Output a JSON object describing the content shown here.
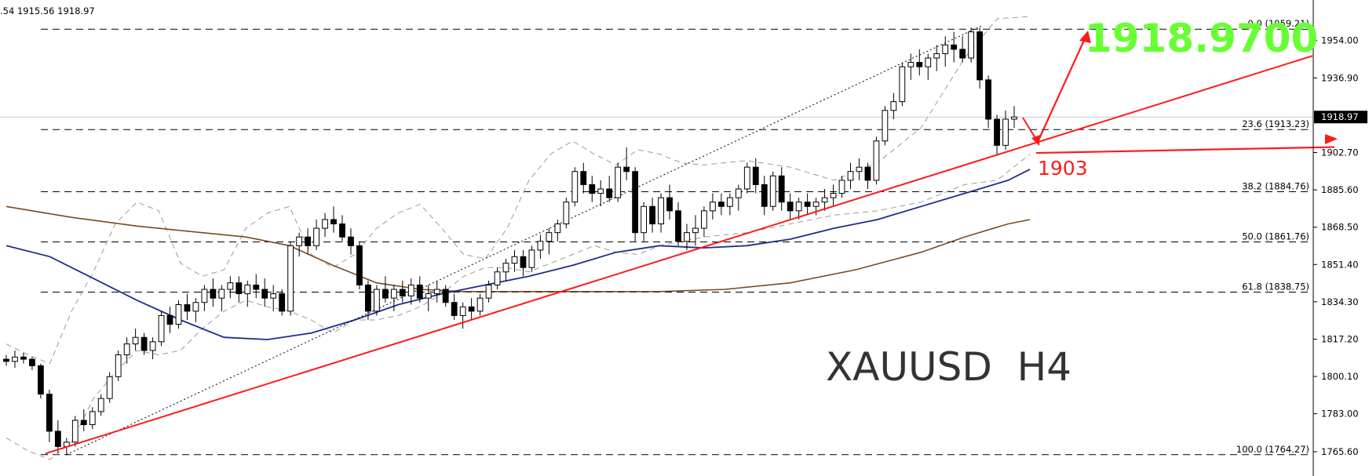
{
  "chart_header": {
    "ohlc_text": ".54 1915.56 1918.97"
  },
  "symbol_label": "XAUUSD  H4",
  "big_price_label": "1918.9700",
  "support_label": "1903",
  "current_price_label": "1918.97",
  "colors": {
    "background": "#ffffff",
    "candle_body_bull": "#ffffff",
    "candle_body_bear": "#000000",
    "ma_blue": "#1f2d8c",
    "ma_brown": "#7a4a1f",
    "trendline_red": "#ff1a1a",
    "big_price_green": "#66ff33",
    "bands_gray": "#9a9a9a",
    "fib_dash": "#000000"
  },
  "chart_data": {
    "type": "candlestick",
    "title": "",
    "symbol": "XAUUSD",
    "timeframe": "H4",
    "ylim": [
      1757,
      1969
    ],
    "y_ticks": [
      {
        "value": 1954.0,
        "label": "1954.00"
      },
      {
        "value": 1936.9,
        "label": "1936.90"
      },
      {
        "value": 1918.97,
        "label": "1918.97"
      },
      {
        "value": 1902.7,
        "label": "1902.70"
      },
      {
        "value": 1885.6,
        "label": "1885.60"
      },
      {
        "value": 1868.5,
        "label": "1868.50"
      },
      {
        "value": 1851.4,
        "label": "1851.40"
      },
      {
        "value": 1834.3,
        "label": "1834.30"
      },
      {
        "value": 1817.2,
        "label": "1817.20"
      },
      {
        "value": 1800.1,
        "label": "1800.10"
      },
      {
        "value": 1783.0,
        "label": "1783.00"
      },
      {
        "value": 1765.6,
        "label": "1765.60"
      }
    ],
    "fib_levels": [
      {
        "label": "0.0 (1959.21)",
        "value": 1959.21
      },
      {
        "label": "23.6 (1913.23)",
        "value": 1913.23
      },
      {
        "label": "38.2 (1884.76)",
        "value": 1884.76
      },
      {
        "label": "50.0 (1861.76)",
        "value": 1861.76
      },
      {
        "label": "61.8 (1838.75)",
        "value": 1838.75
      },
      {
        "label": "100.0 (1764.27)",
        "value": 1764.27
      }
    ],
    "current_price": 1918.97,
    "annotations": [
      {
        "text": "1918.9700",
        "kind": "target"
      },
      {
        "text": "1903",
        "kind": "support"
      }
    ],
    "candles": [
      [
        1808,
        1810,
        1805,
        1807
      ],
      [
        1807,
        1812,
        1804,
        1809
      ],
      [
        1809,
        1811,
        1806,
        1808
      ],
      [
        1808,
        1809,
        1803,
        1805
      ],
      [
        1805,
        1806,
        1790,
        1792
      ],
      [
        1792,
        1794,
        1770,
        1775
      ],
      [
        1775,
        1780,
        1765,
        1768
      ],
      [
        1768,
        1772,
        1764,
        1770
      ],
      [
        1770,
        1782,
        1768,
        1780
      ],
      [
        1780,
        1785,
        1775,
        1778
      ],
      [
        1778,
        1786,
        1776,
        1784
      ],
      [
        1784,
        1792,
        1782,
        1790
      ],
      [
        1790,
        1802,
        1788,
        1800
      ],
      [
        1800,
        1812,
        1798,
        1810
      ],
      [
        1810,
        1818,
        1806,
        1815
      ],
      [
        1815,
        1822,
        1812,
        1818
      ],
      [
        1818,
        1820,
        1810,
        1812
      ],
      [
        1812,
        1818,
        1808,
        1816
      ],
      [
        1816,
        1830,
        1814,
        1828
      ],
      [
        1828,
        1832,
        1820,
        1824
      ],
      [
        1824,
        1835,
        1822,
        1833
      ],
      [
        1833,
        1838,
        1826,
        1830
      ],
      [
        1830,
        1836,
        1825,
        1834
      ],
      [
        1834,
        1842,
        1830,
        1840
      ],
      [
        1840,
        1845,
        1832,
        1836
      ],
      [
        1836,
        1842,
        1830,
        1840
      ],
      [
        1840,
        1846,
        1836,
        1843
      ],
      [
        1843,
        1846,
        1834,
        1838
      ],
      [
        1838,
        1844,
        1832,
        1842
      ],
      [
        1842,
        1847,
        1836,
        1840
      ],
      [
        1840,
        1845,
        1832,
        1836
      ],
      [
        1836,
        1842,
        1830,
        1838
      ],
      [
        1838,
        1840,
        1828,
        1830
      ],
      [
        1830,
        1862,
        1828,
        1860
      ],
      [
        1860,
        1866,
        1855,
        1864
      ],
      [
        1864,
        1868,
        1856,
        1860
      ],
      [
        1860,
        1872,
        1858,
        1868
      ],
      [
        1868,
        1875,
        1864,
        1872
      ],
      [
        1872,
        1878,
        1866,
        1870
      ],
      [
        1870,
        1874,
        1862,
        1864
      ],
      [
        1864,
        1868,
        1856,
        1860
      ],
      [
        1860,
        1862,
        1840,
        1842
      ],
      [
        1842,
        1844,
        1826,
        1830
      ],
      [
        1830,
        1842,
        1828,
        1840
      ],
      [
        1840,
        1846,
        1834,
        1836
      ],
      [
        1836,
        1842,
        1830,
        1840
      ],
      [
        1840,
        1844,
        1834,
        1837
      ],
      [
        1837,
        1845,
        1833,
        1842
      ],
      [
        1842,
        1846,
        1834,
        1836
      ],
      [
        1836,
        1842,
        1830,
        1838
      ],
      [
        1838,
        1844,
        1834,
        1840
      ],
      [
        1840,
        1842,
        1832,
        1834
      ],
      [
        1834,
        1838,
        1826,
        1828
      ],
      [
        1828,
        1834,
        1822,
        1832
      ],
      [
        1832,
        1836,
        1826,
        1830
      ],
      [
        1830,
        1838,
        1828,
        1836
      ],
      [
        1836,
        1844,
        1834,
        1842
      ],
      [
        1842,
        1850,
        1840,
        1848
      ],
      [
        1848,
        1854,
        1844,
        1852
      ],
      [
        1852,
        1858,
        1848,
        1855
      ],
      [
        1855,
        1858,
        1846,
        1850
      ],
      [
        1850,
        1860,
        1848,
        1858
      ],
      [
        1858,
        1865,
        1854,
        1862
      ],
      [
        1862,
        1868,
        1856,
        1866
      ],
      [
        1866,
        1872,
        1862,
        1870
      ],
      [
        1870,
        1882,
        1868,
        1880
      ],
      [
        1880,
        1896,
        1878,
        1894
      ],
      [
        1894,
        1898,
        1884,
        1888
      ],
      [
        1888,
        1892,
        1880,
        1884
      ],
      [
        1884,
        1890,
        1878,
        1886
      ],
      [
        1886,
        1892,
        1880,
        1882
      ],
      [
        1882,
        1898,
        1880,
        1896
      ],
      [
        1896,
        1905,
        1890,
        1894
      ],
      [
        1894,
        1896,
        1862,
        1866
      ],
      [
        1866,
        1880,
        1862,
        1878
      ],
      [
        1878,
        1882,
        1866,
        1870
      ],
      [
        1870,
        1884,
        1866,
        1882
      ],
      [
        1882,
        1888,
        1872,
        1876
      ],
      [
        1876,
        1880,
        1860,
        1862
      ],
      [
        1862,
        1870,
        1858,
        1866
      ],
      [
        1866,
        1874,
        1860,
        1868
      ],
      [
        1868,
        1878,
        1864,
        1876
      ],
      [
        1876,
        1884,
        1872,
        1880
      ],
      [
        1880,
        1884,
        1874,
        1878
      ],
      [
        1878,
        1884,
        1874,
        1882
      ],
      [
        1882,
        1888,
        1876,
        1886
      ],
      [
        1886,
        1898,
        1884,
        1896
      ],
      [
        1896,
        1900,
        1884,
        1888
      ],
      [
        1888,
        1892,
        1874,
        1878
      ],
      [
        1878,
        1894,
        1876,
        1892
      ],
      [
        1892,
        1896,
        1876,
        1880
      ],
      [
        1880,
        1884,
        1872,
        1876
      ],
      [
        1876,
        1882,
        1872,
        1880
      ],
      [
        1880,
        1884,
        1874,
        1878
      ],
      [
        1878,
        1882,
        1874,
        1880
      ],
      [
        1880,
        1886,
        1876,
        1882
      ],
      [
        1882,
        1888,
        1878,
        1884
      ],
      [
        1884,
        1892,
        1882,
        1890
      ],
      [
        1890,
        1898,
        1886,
        1894
      ],
      [
        1894,
        1900,
        1890,
        1896
      ],
      [
        1896,
        1898,
        1886,
        1890
      ],
      [
        1890,
        1910,
        1888,
        1908
      ],
      [
        1908,
        1924,
        1906,
        1922
      ],
      [
        1922,
        1930,
        1918,
        1926
      ],
      [
        1926,
        1944,
        1924,
        1942
      ],
      [
        1942,
        1948,
        1936,
        1944
      ],
      [
        1944,
        1950,
        1938,
        1942
      ],
      [
        1942,
        1948,
        1936,
        1946
      ],
      [
        1946,
        1952,
        1940,
        1948
      ],
      [
        1948,
        1956,
        1942,
        1952
      ],
      [
        1952,
        1958,
        1944,
        1950
      ],
      [
        1950,
        1956,
        1944,
        1946
      ],
      [
        1946,
        1960,
        1944,
        1958
      ],
      [
        1958,
        1960,
        1932,
        1936
      ],
      [
        1936,
        1938,
        1914,
        1918
      ],
      [
        1918,
        1920,
        1902,
        1906
      ],
      [
        1906,
        1922,
        1904,
        1918
      ],
      [
        1918,
        1924,
        1914,
        1919
      ]
    ],
    "ma_blue": [
      [
        0,
        1860
      ],
      [
        20,
        1855
      ],
      [
        40,
        1845
      ],
      [
        60,
        1835
      ],
      [
        80,
        1826
      ],
      [
        100,
        1818
      ],
      [
        120,
        1817
      ],
      [
        140,
        1820
      ],
      [
        160,
        1826
      ],
      [
        180,
        1833
      ],
      [
        200,
        1838
      ],
      [
        220,
        1842
      ],
      [
        240,
        1846
      ],
      [
        260,
        1851
      ],
      [
        280,
        1857
      ],
      [
        300,
        1860
      ],
      [
        320,
        1859
      ],
      [
        340,
        1860
      ],
      [
        360,
        1863
      ],
      [
        380,
        1868
      ],
      [
        400,
        1872
      ],
      [
        420,
        1878
      ],
      [
        440,
        1884
      ],
      [
        460,
        1890
      ],
      [
        470,
        1895
      ]
    ],
    "ma_brown": [
      [
        0,
        1878
      ],
      [
        30,
        1873
      ],
      [
        60,
        1869
      ],
      [
        90,
        1866
      ],
      [
        110,
        1864
      ],
      [
        130,
        1860
      ],
      [
        150,
        1851
      ],
      [
        170,
        1843
      ],
      [
        190,
        1840
      ],
      [
        210,
        1839
      ],
      [
        230,
        1839
      ],
      [
        260,
        1839
      ],
      [
        280,
        1839
      ],
      [
        300,
        1839
      ],
      [
        330,
        1840
      ],
      [
        360,
        1843
      ],
      [
        390,
        1849
      ],
      [
        420,
        1857
      ],
      [
        440,
        1864
      ],
      [
        460,
        1870
      ],
      [
        470,
        1872
      ]
    ],
    "bands_upper": [
      [
        0,
        1815
      ],
      [
        10,
        1810
      ],
      [
        20,
        1806
      ],
      [
        30,
        1830
      ],
      [
        40,
        1848
      ],
      [
        50,
        1870
      ],
      [
        60,
        1880
      ],
      [
        70,
        1876
      ],
      [
        80,
        1852
      ],
      [
        90,
        1846
      ],
      [
        100,
        1849
      ],
      [
        110,
        1868
      ],
      [
        120,
        1875
      ],
      [
        130,
        1878
      ],
      [
        140,
        1856
      ],
      [
        150,
        1850
      ],
      [
        160,
        1856
      ],
      [
        170,
        1868
      ],
      [
        180,
        1875
      ],
      [
        190,
        1879
      ],
      [
        200,
        1868
      ],
      [
        210,
        1856
      ],
      [
        220,
        1854
      ],
      [
        230,
        1868
      ],
      [
        240,
        1890
      ],
      [
        250,
        1902
      ],
      [
        260,
        1908
      ],
      [
        270,
        1902
      ],
      [
        280,
        1897
      ],
      [
        290,
        1904
      ],
      [
        300,
        1902
      ],
      [
        310,
        1898
      ],
      [
        320,
        1897
      ],
      [
        340,
        1899
      ],
      [
        360,
        1896
      ],
      [
        380,
        1890
      ],
      [
        400,
        1898
      ],
      [
        420,
        1914
      ],
      [
        440,
        1946
      ],
      [
        455,
        1964
      ],
      [
        470,
        1965
      ]
    ],
    "bands_lower": [
      [
        0,
        1772
      ],
      [
        10,
        1766
      ],
      [
        20,
        1762
      ],
      [
        30,
        1770
      ],
      [
        40,
        1790
      ],
      [
        50,
        1802
      ],
      [
        60,
        1812
      ],
      [
        70,
        1810
      ],
      [
        80,
        1812
      ],
      [
        90,
        1822
      ],
      [
        100,
        1830
      ],
      [
        110,
        1835
      ],
      [
        120,
        1832
      ],
      [
        130,
        1830
      ],
      [
        140,
        1826
      ],
      [
        150,
        1820
      ],
      [
        160,
        1826
      ],
      [
        170,
        1826
      ],
      [
        180,
        1828
      ],
      [
        190,
        1832
      ],
      [
        200,
        1838
      ],
      [
        210,
        1846
      ],
      [
        220,
        1850
      ],
      [
        230,
        1850
      ],
      [
        240,
        1848
      ],
      [
        250,
        1852
      ],
      [
        260,
        1856
      ],
      [
        270,
        1860
      ],
      [
        280,
        1857
      ],
      [
        290,
        1856
      ],
      [
        300,
        1860
      ],
      [
        310,
        1862
      ],
      [
        320,
        1864
      ],
      [
        340,
        1866
      ],
      [
        360,
        1870
      ],
      [
        380,
        1874
      ],
      [
        400,
        1876
      ],
      [
        420,
        1880
      ],
      [
        440,
        1888
      ],
      [
        455,
        1890
      ],
      [
        470,
        1902
      ]
    ]
  }
}
